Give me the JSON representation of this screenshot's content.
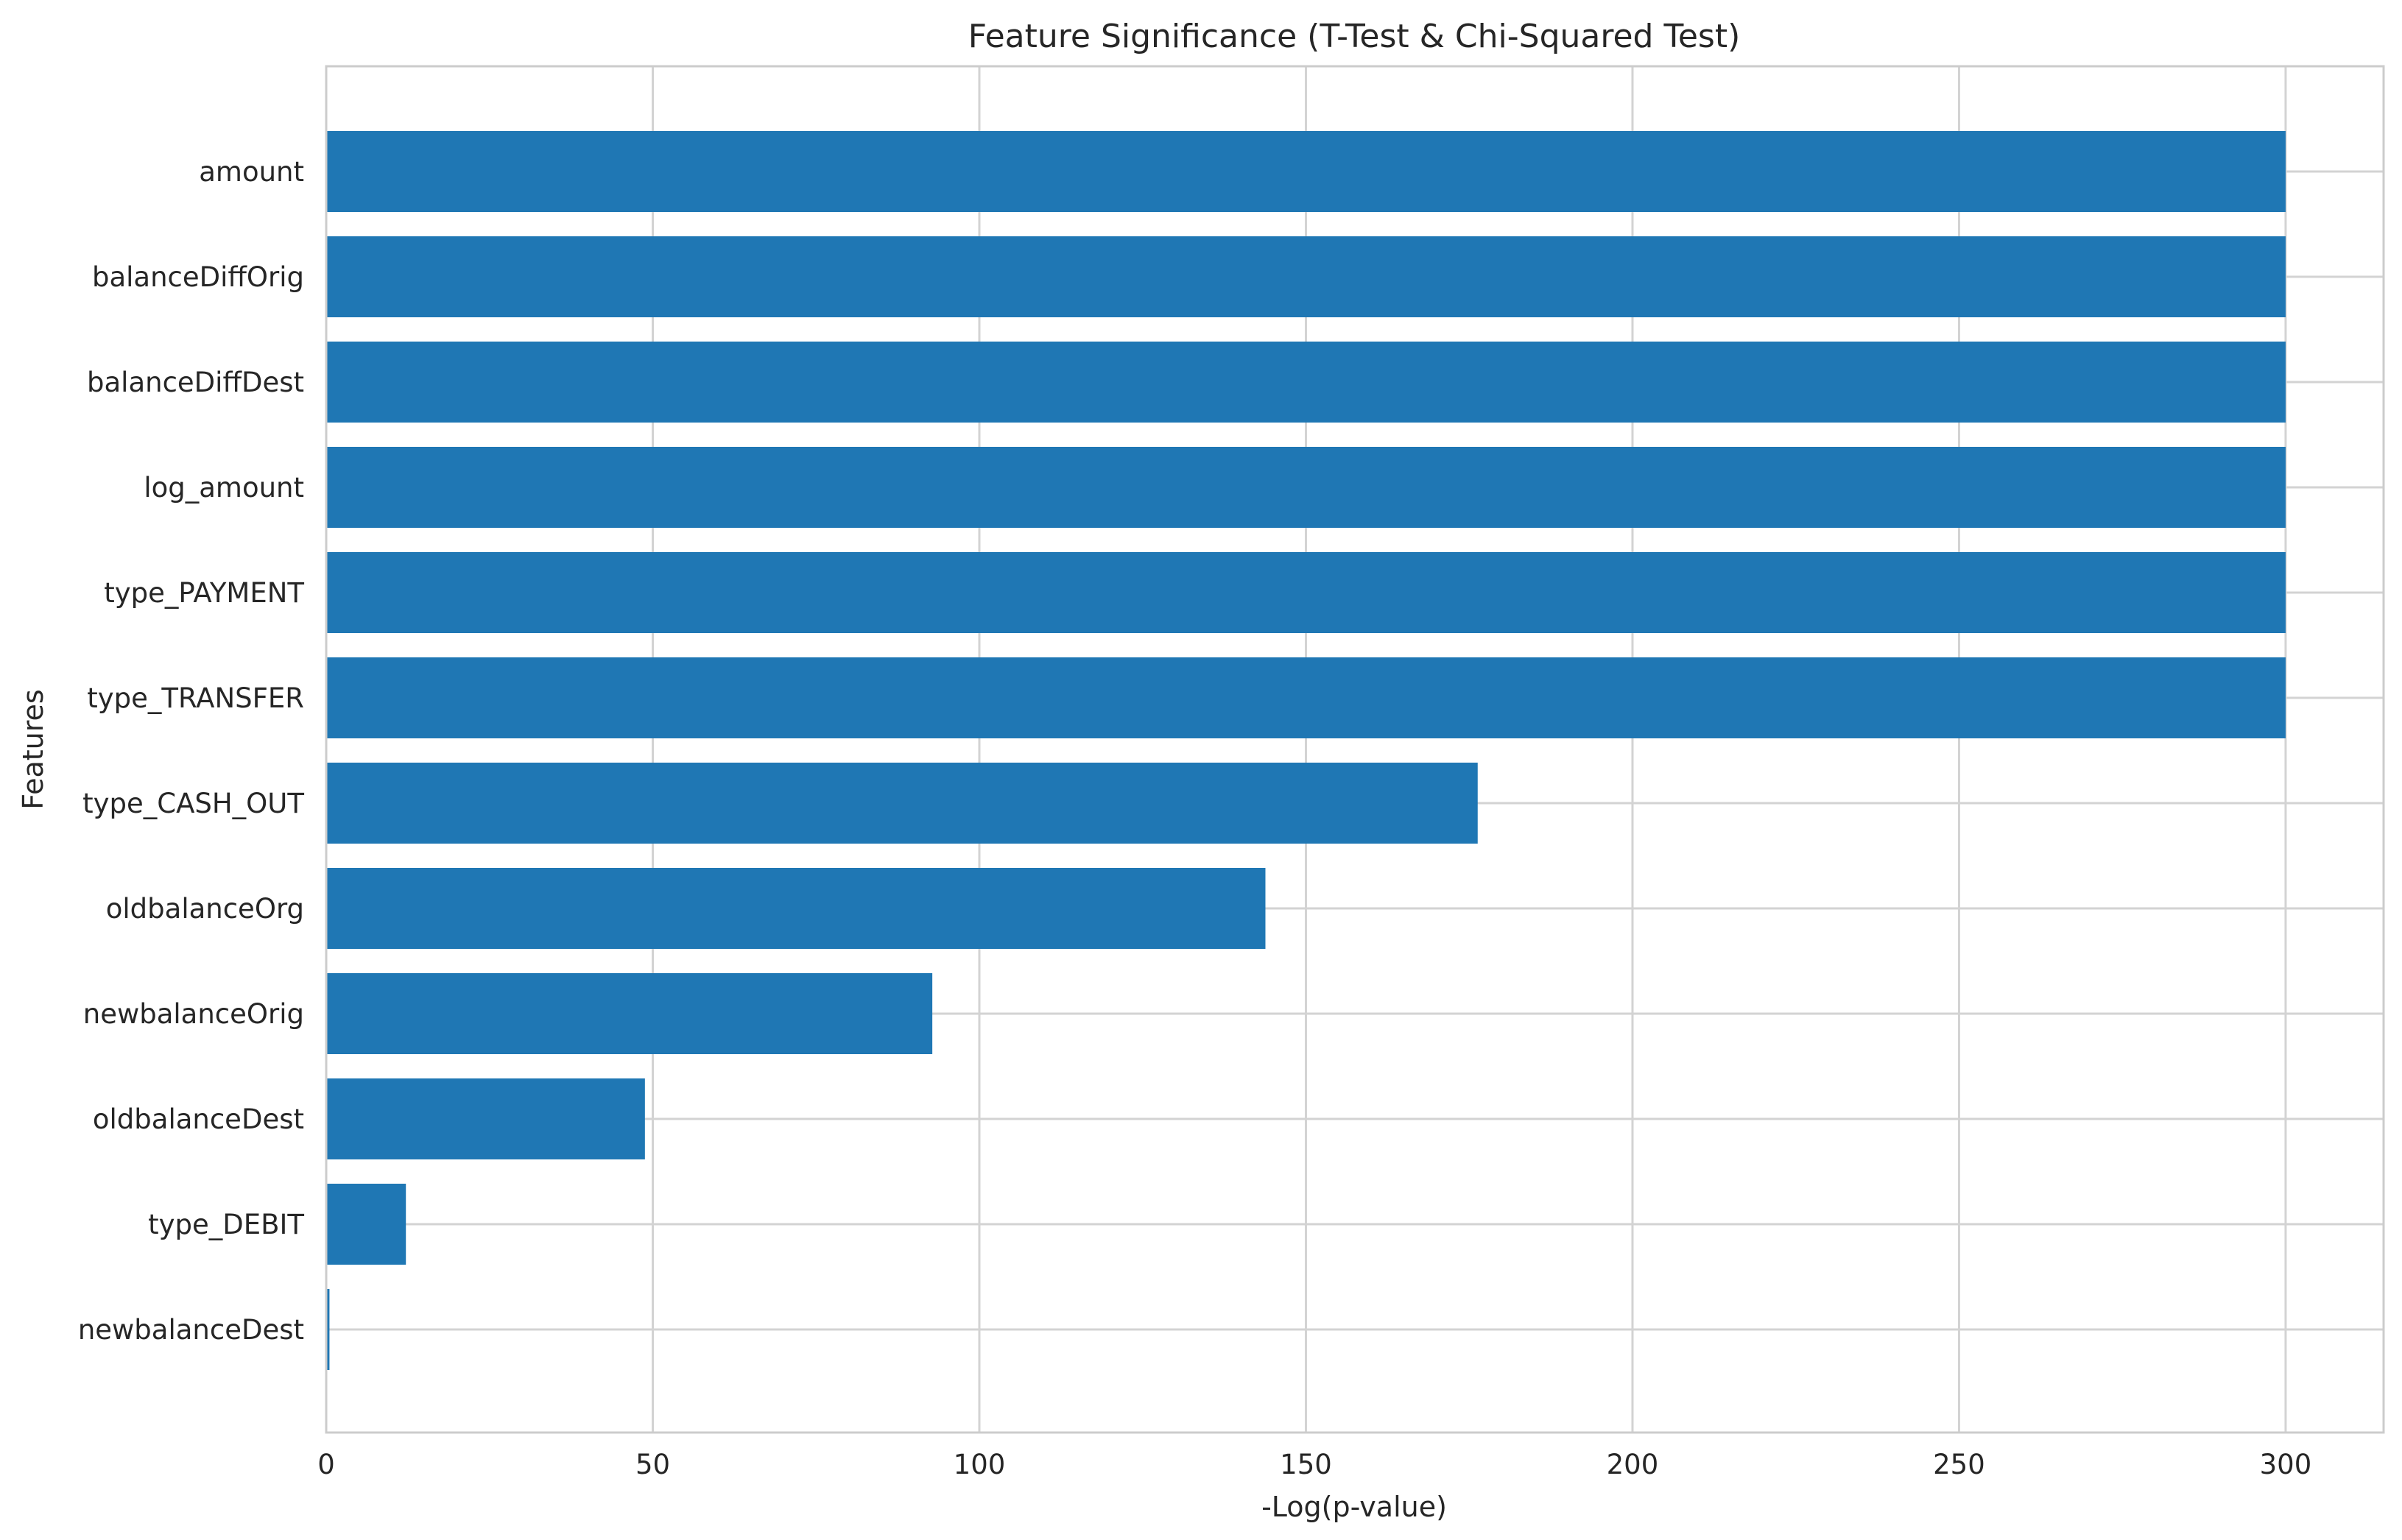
{
  "chart_data": {
    "type": "bar",
    "orientation": "horizontal",
    "title": "Feature Significance (T-Test & Chi-Squared Test)",
    "xlabel": "-Log(p-value)",
    "ylabel": "Features",
    "categories": [
      "amount",
      "balanceDiffOrig",
      "balanceDiffDest",
      "log_amount",
      "type_PAYMENT",
      "type_TRANSFER",
      "type_CASH_OUT",
      "oldbalanceOrg",
      "newbalanceOrig",
      "oldbalanceDest",
      "type_DEBIT",
      "newbalanceDest"
    ],
    "values": [
      300,
      300,
      300,
      300,
      300,
      300,
      176.3,
      143.8,
      92.8,
      48.8,
      12.2,
      0.5
    ],
    "xlim": [
      0,
      315
    ],
    "xticks": [
      0,
      50,
      100,
      150,
      200,
      250,
      300
    ],
    "xtick_labels": [
      "0",
      "50",
      "100",
      "150",
      "200",
      "250",
      "300"
    ],
    "grid": true,
    "bar_color": "#1f77b4",
    "grid_color": "#d3d3d3",
    "spine_color": "#cccccc"
  }
}
